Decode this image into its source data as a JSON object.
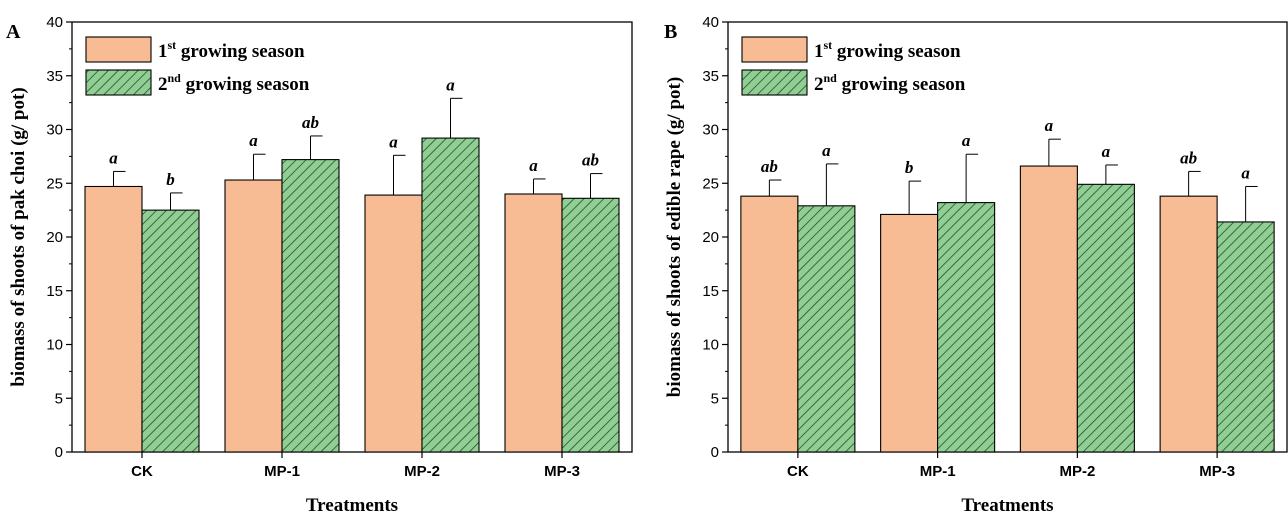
{
  "chart_data": [
    {
      "type": "bar",
      "panel_label": "A",
      "categories": [
        "CK",
        "MP-1",
        "MP-2",
        "MP-3"
      ],
      "xlabel": "Treatments",
      "ylabel": "biomass of shoots of pak choi (g/ pot)",
      "ylim": [
        0,
        40
      ],
      "yticks": [
        0,
        5,
        10,
        15,
        20,
        25,
        30,
        35,
        40
      ],
      "legend_position": "top-left",
      "series": [
        {
          "name_base": "1",
          "name_sup": "st",
          "name_rest": " growing season",
          "color": "#f8bc95",
          "pattern": "solid",
          "values": [
            24.7,
            25.3,
            23.9,
            24.0
          ],
          "errors": [
            1.4,
            2.4,
            3.7,
            1.4
          ],
          "labels": [
            "a",
            "a",
            "a",
            "a"
          ]
        },
        {
          "name_base": "2",
          "name_sup": "nd",
          "name_rest": " growing season",
          "color": "#8fcf94",
          "pattern": "hatched",
          "values": [
            22.5,
            27.2,
            29.2,
            23.6
          ],
          "errors": [
            1.6,
            2.2,
            3.7,
            2.3
          ],
          "labels": [
            "b",
            "ab",
            "a",
            "ab"
          ]
        }
      ]
    },
    {
      "type": "bar",
      "panel_label": "B",
      "categories": [
        "CK",
        "MP-1",
        "MP-2",
        "MP-3"
      ],
      "xlabel": "Treatments",
      "ylabel": "biomass of shoots of edible rape (g/ pot)",
      "ylim": [
        0,
        40
      ],
      "yticks": [
        0,
        5,
        10,
        15,
        20,
        25,
        30,
        35,
        40
      ],
      "legend_position": "top-left",
      "series": [
        {
          "name_base": "1",
          "name_sup": "st",
          "name_rest": " growing season",
          "color": "#f8bc95",
          "pattern": "solid",
          "values": [
            23.8,
            22.1,
            26.6,
            23.8
          ],
          "errors": [
            1.5,
            3.1,
            2.5,
            2.3
          ],
          "labels": [
            "ab",
            "b",
            "a",
            "ab"
          ]
        },
        {
          "name_base": "2",
          "name_sup": "nd",
          "name_rest": " growing season",
          "color": "#8fcf94",
          "pattern": "hatched",
          "values": [
            22.9,
            23.2,
            24.9,
            21.4
          ],
          "errors": [
            3.9,
            4.5,
            1.8,
            3.3
          ],
          "labels": [
            "a",
            "a",
            "a",
            "a"
          ]
        }
      ]
    }
  ]
}
